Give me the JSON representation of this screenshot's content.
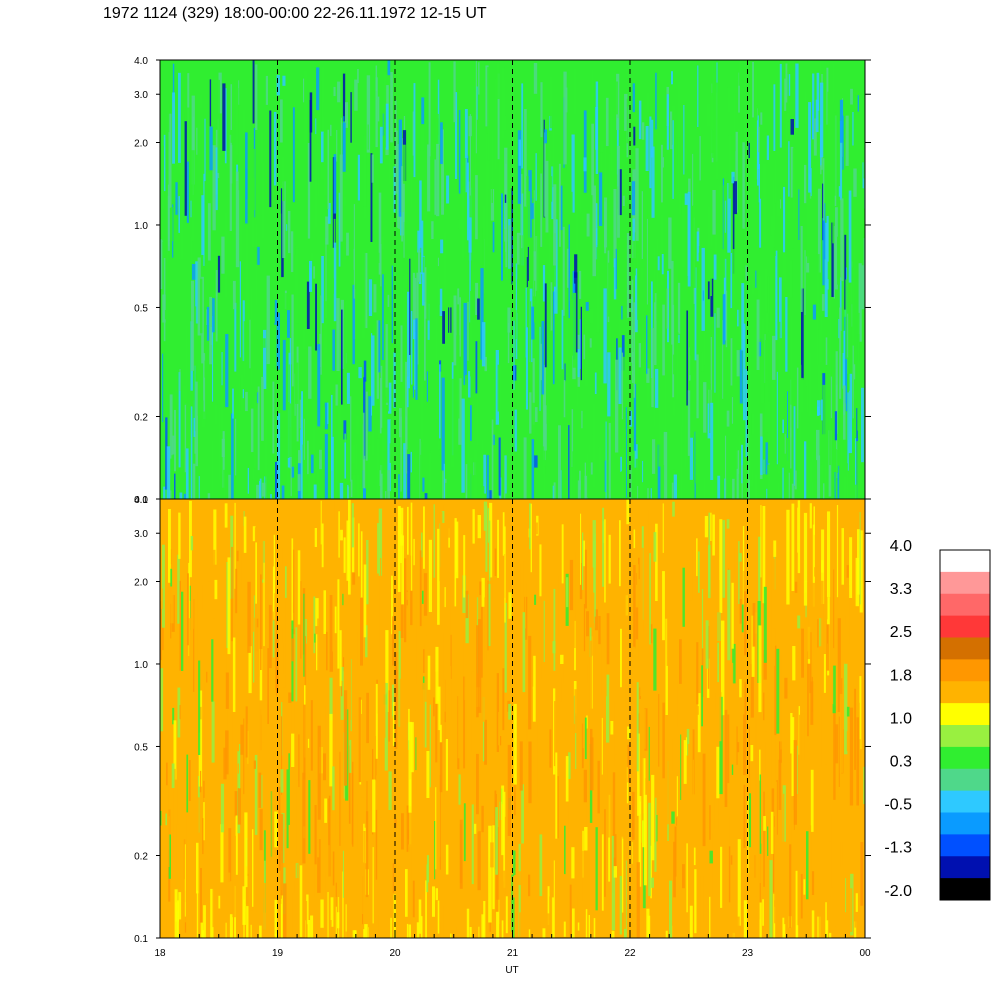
{
  "title": "1972 1124 (329) 18:00-00:00 22-26.11.1972  12-15 UT",
  "chart_data": {
    "type": "heatmap",
    "xlabel": "UT",
    "x_ticks": [
      "18",
      "19",
      "20",
      "21",
      "22",
      "23",
      "00"
    ],
    "x_range": [
      18,
      24
    ],
    "panels": [
      {
        "y_scale": "log",
        "y_range": [
          0.1,
          4.0
        ],
        "y_ticks": [
          "0.1",
          "0.2",
          "0.5",
          "1.0",
          "2.0",
          "3.0",
          "4.0"
        ],
        "dominant_colors": [
          "#30ee30",
          "#4fd88a",
          "#2ec9ff",
          "#0a9bff",
          "#0050ff",
          "#0010b0"
        ]
      },
      {
        "y_scale": "log",
        "y_range": [
          0.1,
          4.0
        ],
        "y_ticks": [
          "0.1",
          "0.2",
          "0.5",
          "1.0",
          "2.0",
          "3.0",
          "4.0"
        ],
        "dominant_colors": [
          "#ffb300",
          "#ff9700",
          "#ffff00",
          "#99f040",
          "#30ee30",
          "#d47000"
        ]
      }
    ],
    "colorbar": {
      "labels": [
        "4.0",
        "3.3",
        "2.5",
        "1.8",
        "1.0",
        "0.3",
        "-0.5",
        "-1.3",
        "-2.0"
      ],
      "colors": [
        "#ffffff",
        "#ff9898",
        "#ff6868",
        "#ff3838",
        "#d47000",
        "#ff9700",
        "#ffb300",
        "#ffff00",
        "#99f040",
        "#30ee30",
        "#4fd88a",
        "#2ec9ff",
        "#0a9bff",
        "#0050ff",
        "#0010b0",
        "#000000"
      ]
    }
  }
}
